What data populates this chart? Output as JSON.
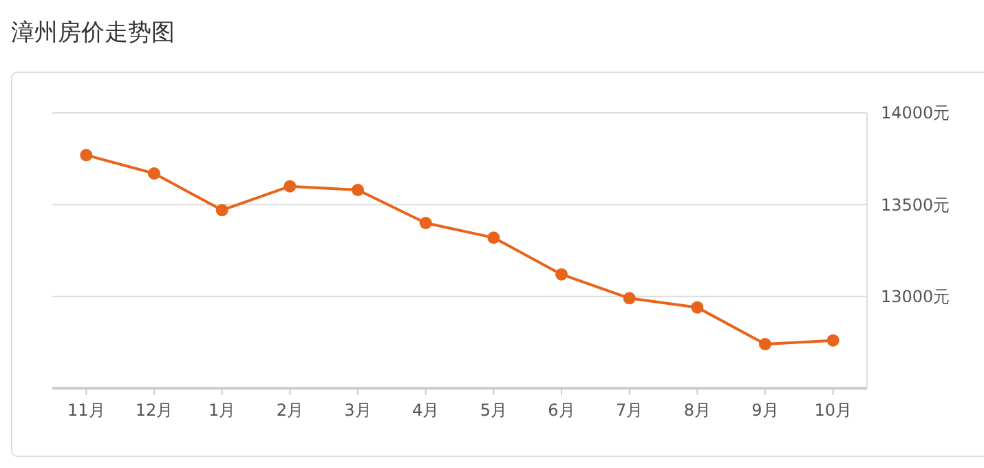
{
  "chart_data": {
    "type": "line",
    "title": "漳州房价走势图",
    "categories": [
      "11月",
      "12月",
      "1月",
      "2月",
      "3月",
      "4月",
      "5月",
      "6月",
      "7月",
      "8月",
      "9月",
      "10月"
    ],
    "series": [
      {
        "color": "#e8641b",
        "values": [
          13770,
          13670,
          13470,
          13600,
          13580,
          13400,
          13320,
          13120,
          12990,
          12940,
          12740,
          12760
        ]
      }
    ],
    "ylim": [
      12500,
      14000
    ],
    "yticks": [
      {
        "value": 13000,
        "label": "13000元"
      },
      {
        "value": 13500,
        "label": "13500元"
      },
      {
        "value": 14000,
        "label": "14000元"
      }
    ],
    "grid": "y",
    "marker": "circle",
    "line_style": "solid"
  }
}
